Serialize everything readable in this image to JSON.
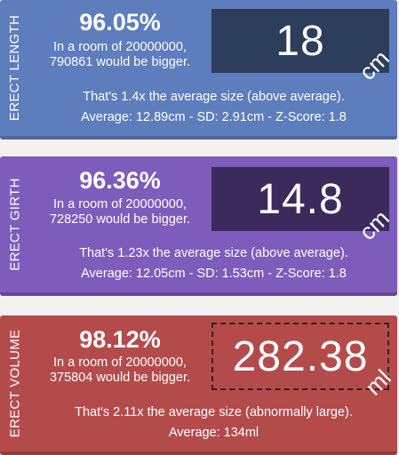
{
  "cards": [
    {
      "side_label": "ERECT LENGTH",
      "percentile": "96.05%",
      "room_line1": "In a room of 20000000,",
      "room_line2": "790861 would be bigger.",
      "value": "18",
      "unit": "cm",
      "comparison": "That's 1.4x the average size (above average).",
      "stats": "Average: 12.89cm - SD: 2.91cm - Z-Score: 1.8"
    },
    {
      "side_label": "ERECT GIRTH",
      "percentile": "96.36%",
      "room_line1": "In a room of 20000000,",
      "room_line2": "728250 would be bigger.",
      "value": "14.8",
      "unit": "cm",
      "comparison": "That's 1.23x the average size (above average).",
      "stats": "Average: 12.05cm - SD: 1.53cm - Z-Score: 1.8"
    },
    {
      "side_label": "ERECT VOLUME",
      "percentile": "98.12%",
      "room_line1": "In a room of 20000000,",
      "room_line2": "375804 would be bigger.",
      "value": "282.38",
      "unit": "ml",
      "comparison": "That's 2.11x the average size (abnormally large).",
      "stats": "Average: 134ml"
    }
  ],
  "colors": {
    "length_card": "#5d7dbd",
    "girth_card": "#7d5cbb",
    "volume_card": "#b44b4b"
  }
}
